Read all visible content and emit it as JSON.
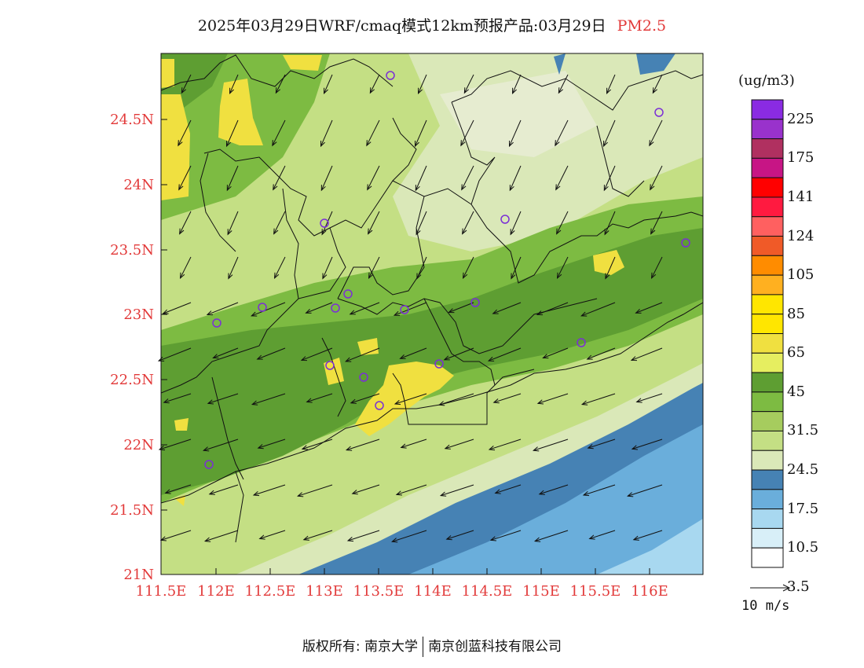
{
  "title": {
    "main": "2025年03月29日WRF/cmaq模式12km预报产品:03月29日",
    "pollutant": "PM2.5"
  },
  "axes": {
    "lat_ticks": [
      "24.5N",
      "24N",
      "23.5N",
      "23N",
      "22.5N",
      "22N",
      "21.5N",
      "21N"
    ],
    "lon_ticks": [
      "111.5E",
      "112E",
      "112.5E",
      "113E",
      "113.5E",
      "114E",
      "114.5E",
      "115E",
      "115.5E",
      "116E"
    ],
    "tick_color": "#e23a3a"
  },
  "colorbar": {
    "unit": "(ug/m3)",
    "labels": [
      "225",
      "175",
      "141",
      "124",
      "105",
      "85",
      "65",
      "45",
      "31.5",
      "24.5",
      "17.5",
      "10.5",
      "3.5"
    ],
    "colors_top_to_bottom": [
      "#8a2be2",
      "#9932cc",
      "#b03060",
      "#c71585",
      "#ff0000",
      "#ff1a40",
      "#ff6060",
      "#f05a28",
      "#ff8c00",
      "#ffb020",
      "#ffe600",
      "#ffe600",
      "#f0e040",
      "#e6ee60",
      "#5e9e32",
      "#7dbb42",
      "#a6cc5e",
      "#c4df84",
      "#dae8b8",
      "#4682b4",
      "#6aaedb",
      "#a8d8f0",
      "#d8eff8",
      "#ffffff"
    ]
  },
  "wind_reference": {
    "label": "10 m/s"
  },
  "copyright": {
    "owner1": "版权所有: 南京大学",
    "owner2": "南京创蓝科技有限公司"
  }
}
